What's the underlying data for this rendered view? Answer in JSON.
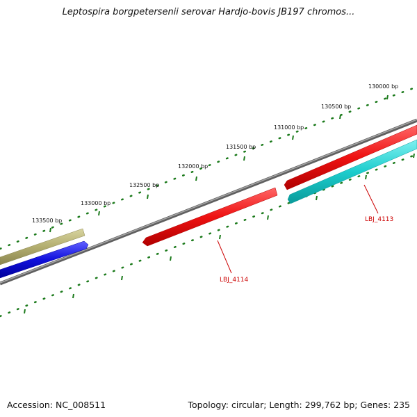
{
  "title": "Leptospira borgpetersenii serovar Hardjo-bovis JB197 chromos...",
  "footer": {
    "accession": "Accession: NC_008511",
    "stats": "Topology: circular; Length: 299,762 bp; Genes: 235"
  },
  "colors": {
    "backbone": "#7a7a7a",
    "ticks": "#1b7a1b",
    "forward_gene": "#ee1111",
    "olive_gene": "#b3ae6f",
    "blue_gene": "#1010dd",
    "cyan_gene": "#1ccdcd",
    "label_red": "#cc0000"
  },
  "scale_labels": [
    "130000 bp",
    "130500 bp",
    "131000 bp",
    "131500 bp",
    "132000 bp",
    "132500 bp",
    "133000 bp",
    "133500 bp"
  ],
  "gene_labels": [
    "LBJ_4113",
    "LBJ_4114"
  ]
}
